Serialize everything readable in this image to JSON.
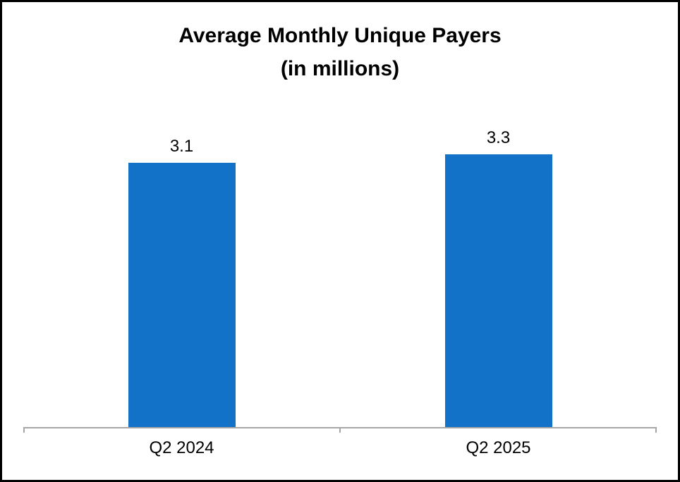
{
  "chart_data": {
    "type": "bar",
    "title": "Average Monthly Unique Payers (in millions)",
    "title_lines": [
      "Average Monthly Unique Payers",
      "(in millions)"
    ],
    "categories": [
      "Q2 2024",
      "Q2 2025"
    ],
    "values": [
      3.1,
      3.3
    ],
    "value_labels": [
      "3.1",
      "3.3"
    ],
    "ylim": [
      0,
      3.5
    ],
    "xlabel": "",
    "ylabel": "",
    "grid": false,
    "legend_position": "none",
    "colors": {
      "bar": "#1172C8",
      "axis": "#A6A6A6",
      "text": "#000000",
      "background": "#FFFFFF",
      "frame_border": "#000000"
    }
  }
}
